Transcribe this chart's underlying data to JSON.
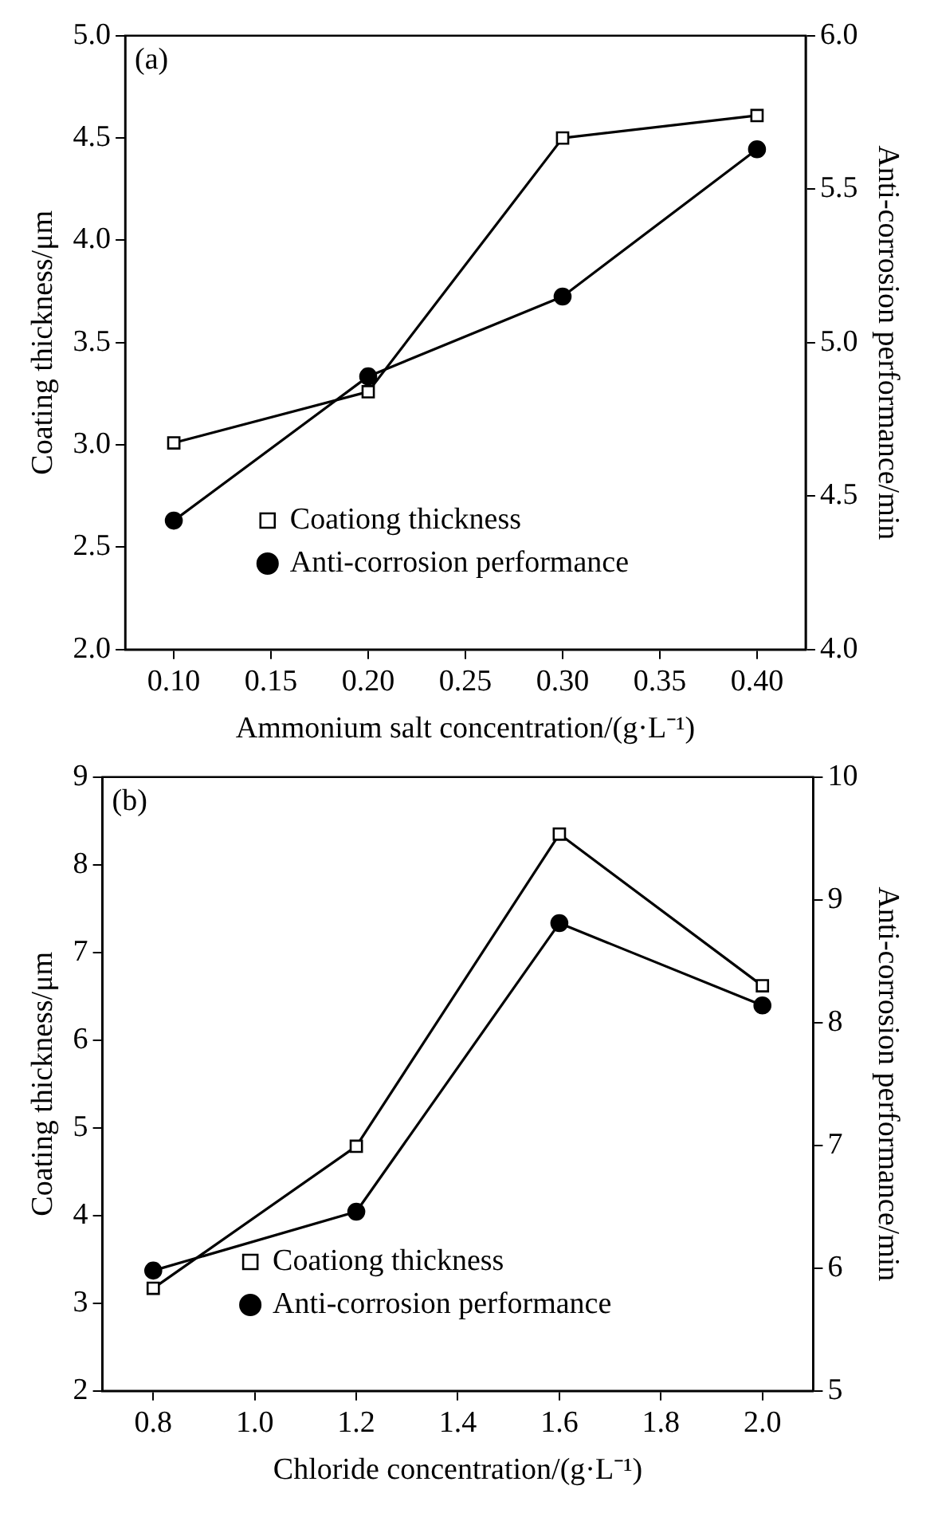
{
  "chart_data": [
    {
      "type": "line",
      "xlabel": "Ammonium salt concentration/(g·L⁻¹)",
      "ylabel": "Coating thickness/μm",
      "y2label": "Anti-corrosion performance/min",
      "annotations": [
        "(a)"
      ],
      "x": [
        0.1,
        0.2,
        0.3,
        0.4
      ],
      "xlim": [
        0.075,
        0.425
      ],
      "xticks": [
        {
          "value": 0.1,
          "label": "0.10"
        },
        {
          "value": 0.15,
          "label": "0.15"
        },
        {
          "value": 0.2,
          "label": "0.20"
        },
        {
          "value": 0.25,
          "label": "0.25"
        },
        {
          "value": 0.3,
          "label": "0.30"
        },
        {
          "value": 0.35,
          "label": "0.35"
        },
        {
          "value": 0.4,
          "label": "0.40"
        }
      ],
      "ylim": [
        2,
        5
      ],
      "yticks": [
        {
          "value": 2,
          "label": "2.0"
        },
        2.5,
        {
          "value": 3,
          "label": "3.0"
        },
        3.5,
        {
          "value": 4,
          "label": "4.0"
        },
        4.5,
        {
          "value": 5,
          "label": "5.0"
        }
      ],
      "y2lim": [
        4,
        6
      ],
      "y2ticks": [
        {
          "value": 4,
          "label": "4.0"
        },
        4.5,
        {
          "value": 5,
          "label": "5.0"
        },
        5.5,
        {
          "value": 6,
          "label": "6.0"
        }
      ],
      "series": [
        {
          "name": "Coationg thickness",
          "color": "#000000",
          "marker": "square",
          "values": [
            3.01,
            3.26,
            4.5,
            4.61
          ]
        },
        {
          "name": "Anti-corrosion performance",
          "color": "#000000",
          "marker": "circle",
          "axis": "y2",
          "values": [
            4.42,
            4.89,
            5.15,
            5.63
          ]
        }
      ],
      "legend": "bottom",
      "grid": false,
      "line_style": "solid"
    },
    {
      "type": "line",
      "xlabel": "Chloride concentration/(g·L⁻¹)",
      "ylabel": "Coating thickness/μm",
      "y2label": "Anti-corrosion performance/min",
      "annotations": [
        "(b)"
      ],
      "x": [
        0.8,
        1.2,
        1.6,
        2.0
      ],
      "xlim": [
        0.7,
        2.1
      ],
      "xticks": [
        0.8,
        {
          "value": 1,
          "label": "1.0"
        },
        1.2,
        1.4,
        1.6,
        1.8,
        {
          "value": 2,
          "label": "2.0"
        }
      ],
      "ylim": [
        2,
        9
      ],
      "yticks": [
        2,
        3,
        4,
        5,
        6,
        7,
        8,
        9
      ],
      "y2lim": [
        5,
        10
      ],
      "y2ticks": [
        5,
        6,
        7,
        8,
        9,
        10
      ],
      "series": [
        {
          "name": "Coationg thickness",
          "color": "#000000",
          "marker": "square",
          "values": [
            3.17,
            4.79,
            8.35,
            6.62
          ]
        },
        {
          "name": "Anti-corrosion performance",
          "color": "#000000",
          "marker": "circle",
          "axis": "y2",
          "values": [
            5.98,
            6.46,
            8.81,
            8.14
          ]
        }
      ],
      "legend": "bottom",
      "grid": false,
      "line_style": "solid"
    }
  ]
}
